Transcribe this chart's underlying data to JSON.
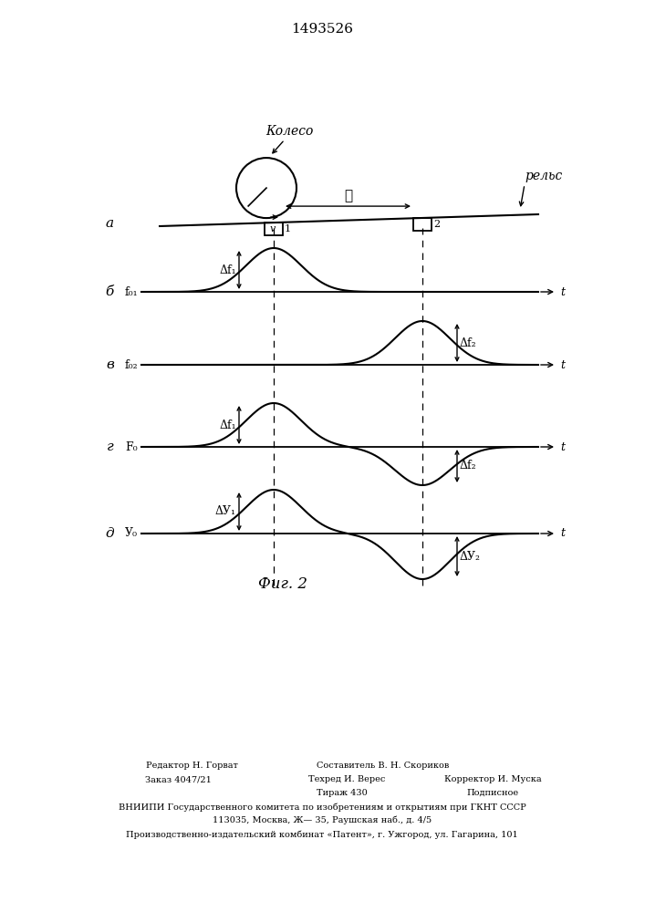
{
  "title": "1493526",
  "fig_caption": "Фиг. 2",
  "bg_color": "#ffffff",
  "line_color": "#000000",
  "label_a": "а",
  "label_b": "б",
  "label_v": "в",
  "label_g": "г",
  "label_d": "д",
  "text_koleso": "Колесо",
  "text_relsm": "рельс",
  "text_v_arrow": "v",
  "text_l": "ℓ",
  "text_f01": "f₀₁",
  "text_f02": "f₀₂",
  "text_F0": "F₀",
  "text_U0": "У₀",
  "text_df1": "Δf₁",
  "text_df2": "Δf₂",
  "text_dU1": "ΔУ₁",
  "text_dU2": "ΔУ₂",
  "text_t": "t",
  "sensor1_label": "1",
  "sensor2_label": "2",
  "bottom_line1_left": "Редактор Н. Горват",
  "bottom_line1_mid": "Составитель В. Н. Скориков",
  "bottom_line2_left": "Заказ 4047/21",
  "bottom_line2_mid": "Техред И. Верес",
  "bottom_line2_right": "Корректор И. Муска",
  "bottom_line3_mid": "Тираж 430",
  "bottom_line3_right": "Подписное",
  "bottom_line4": "ВНИИПИ Государственного комитета по изобретениям и открытиям при ГКНТ СССР",
  "bottom_line5": "113035, Москва, Ж— 35, Раушская наб., д. 4/5",
  "bottom_line6": "Производственно-издательский комбинат «Патент», г. Ужгород, ул. Гагарина, 101"
}
